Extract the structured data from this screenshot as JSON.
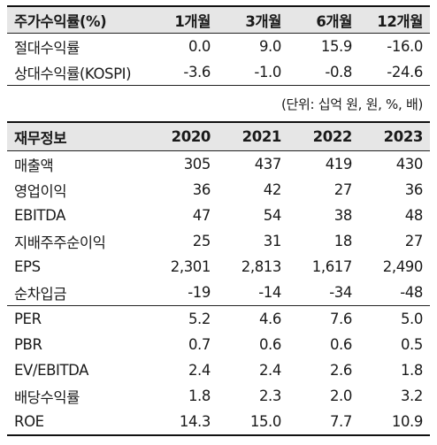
{
  "returns": {
    "header": {
      "label": "주가수익률(%)",
      "cols": [
        "1개월",
        "3개월",
        "6개월",
        "12개월"
      ]
    },
    "rows": [
      {
        "label": "절대수익률",
        "values": [
          "0.0",
          "9.0",
          "15.9",
          "-16.0"
        ]
      },
      {
        "label": "상대수익률(KOSPI)",
        "values": [
          "-3.6",
          "-1.0",
          "-0.8",
          "-24.6"
        ]
      }
    ]
  },
  "unit_note": "(단위: 십억 원, 원, %, 배)",
  "financials": {
    "header": {
      "label": "재무정보",
      "cols": [
        "2020",
        "2021",
        "2022",
        "2023"
      ]
    },
    "group1": [
      {
        "label": "매출액",
        "values": [
          "305",
          "437",
          "419",
          "430"
        ]
      },
      {
        "label": "영업이익",
        "values": [
          "36",
          "42",
          "27",
          "36"
        ]
      },
      {
        "label": "EBITDA",
        "values": [
          "47",
          "54",
          "38",
          "48"
        ]
      },
      {
        "label": "지배주주순이익",
        "values": [
          "25",
          "31",
          "18",
          "27"
        ]
      },
      {
        "label": "EPS",
        "values": [
          "2,301",
          "2,813",
          "1,617",
          "2,490"
        ]
      },
      {
        "label": "순차입금",
        "values": [
          "-19",
          "-14",
          "-34",
          "-48"
        ]
      }
    ],
    "group2": [
      {
        "label": "PER",
        "values": [
          "5.2",
          "4.6",
          "7.6",
          "5.0"
        ]
      },
      {
        "label": "PBR",
        "values": [
          "0.7",
          "0.6",
          "0.6",
          "0.5"
        ]
      },
      {
        "label": "EV/EBITDA",
        "values": [
          "2.4",
          "2.4",
          "2.6",
          "1.8"
        ]
      },
      {
        "label": "배당수익률",
        "values": [
          "1.8",
          "2.3",
          "2.0",
          "3.2"
        ]
      },
      {
        "label": "ROE",
        "values": [
          "14.3",
          "15.0",
          "7.7",
          "10.9"
        ]
      }
    ]
  }
}
